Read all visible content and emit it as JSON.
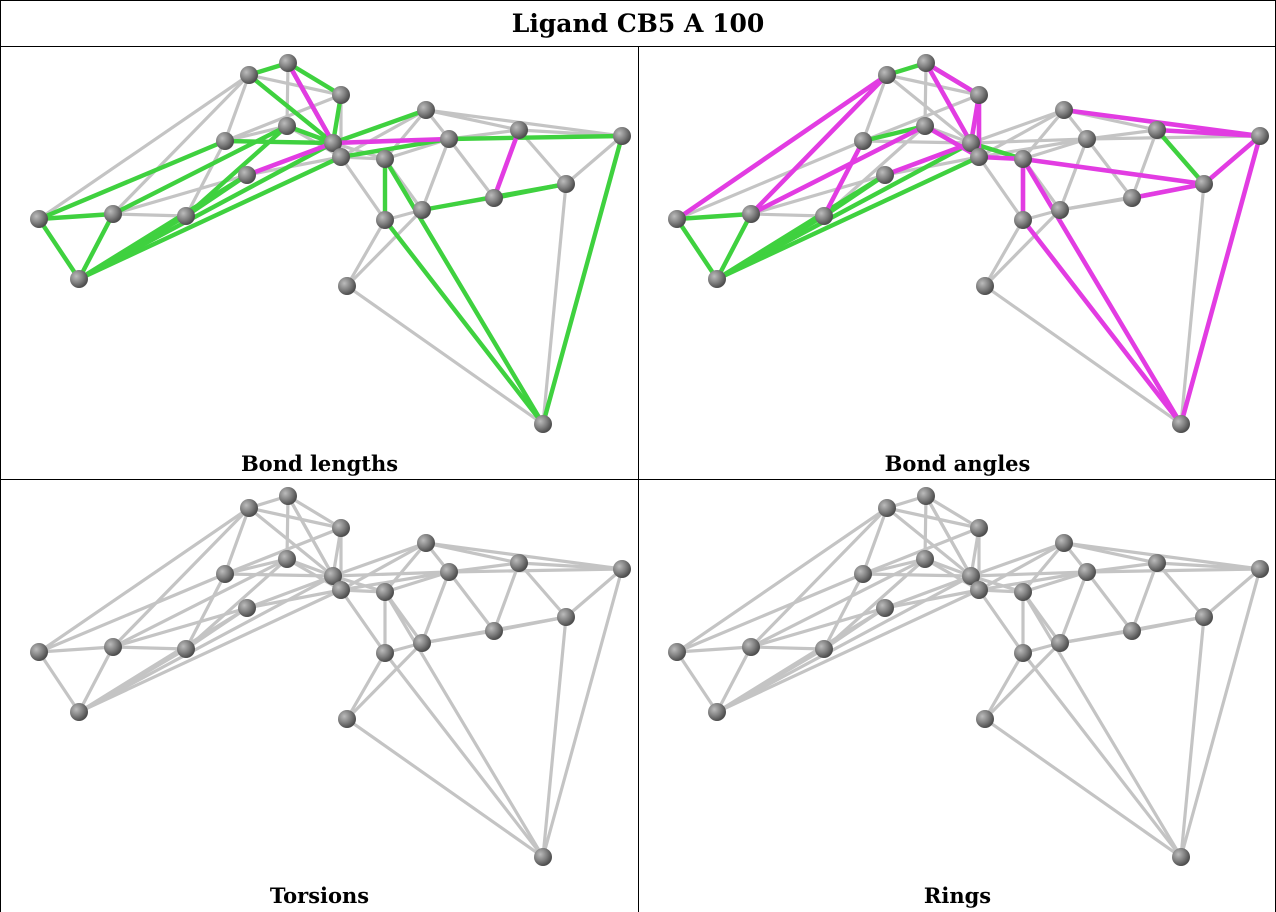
{
  "title": "Ligand CB5 A 100",
  "colors": {
    "bond": "#c4c4c4",
    "atom": "#828282",
    "green": "#3fd13f",
    "magenta": "#e23ce2"
  },
  "panels": [
    {
      "caption": "Bond lengths"
    },
    {
      "caption": "Bond angles"
    },
    {
      "caption": "Torsions"
    },
    {
      "caption": "Rings"
    }
  ]
}
